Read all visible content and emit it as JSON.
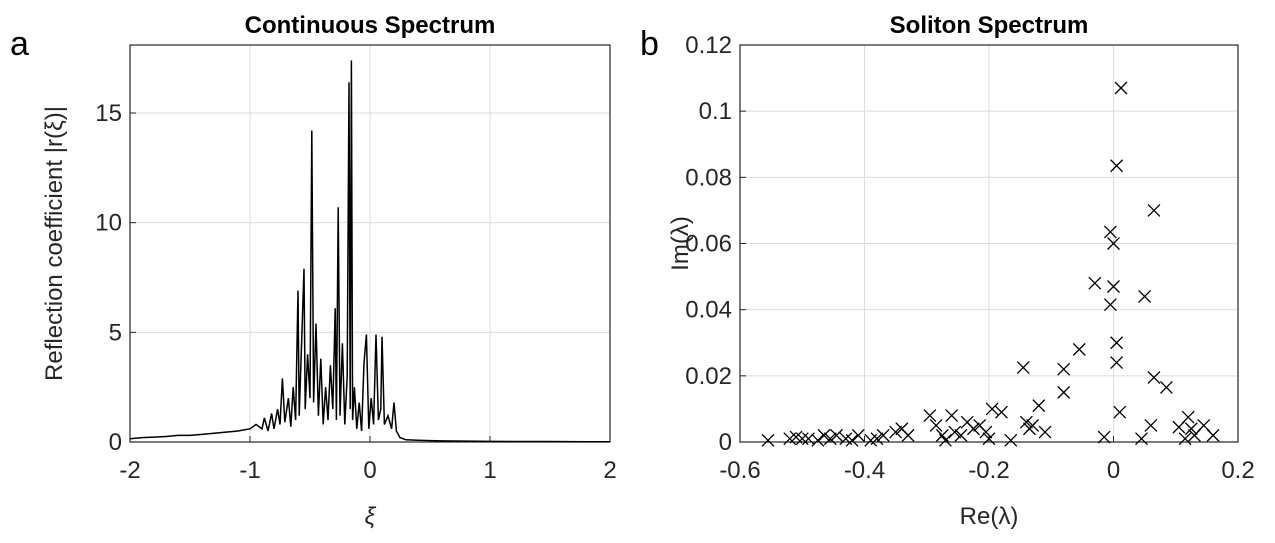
{
  "chart_data": [
    {
      "type": "line",
      "panel_label": "a",
      "title": "Continuous Spectrum",
      "xlabel": "ξ",
      "ylabel": "Reflection coefficient |r(ξ)|",
      "color": "#000000",
      "grid": true,
      "xlim": [
        -2,
        2
      ],
      "xticks": [
        -2,
        -1,
        0,
        1,
        2
      ],
      "ylim": [
        0,
        18.1
      ],
      "yticks": [
        0,
        5,
        10,
        15
      ],
      "x": [
        -2,
        -1.9,
        -1.8,
        -1.7,
        -1.6,
        -1.5,
        -1.4,
        -1.3,
        -1.2,
        -1.1,
        -1.0,
        -0.95,
        -0.9,
        -0.88,
        -0.85,
        -0.82,
        -0.8,
        -0.77,
        -0.75,
        -0.73,
        -0.71,
        -0.68,
        -0.66,
        -0.64,
        -0.62,
        -0.6,
        -0.59,
        -0.57,
        -0.55,
        -0.54,
        -0.52,
        -0.5,
        -0.485,
        -0.47,
        -0.45,
        -0.43,
        -0.41,
        -0.39,
        -0.37,
        -0.35,
        -0.33,
        -0.31,
        -0.29,
        -0.28,
        -0.265,
        -0.25,
        -0.23,
        -0.21,
        -0.19,
        -0.175,
        -0.165,
        -0.155,
        -0.145,
        -0.13,
        -0.11,
        -0.09,
        -0.07,
        -0.05,
        -0.03,
        -0.01,
        0.01,
        0.03,
        0.05,
        0.07,
        0.09,
        0.1,
        0.12,
        0.15,
        0.18,
        0.2,
        0.22,
        0.25,
        0.3,
        0.4,
        0.5,
        0.6,
        0.8,
        1.0,
        1.2,
        1.5,
        1.8,
        2.0
      ],
      "values": [
        0.15,
        0.2,
        0.22,
        0.25,
        0.3,
        0.3,
        0.35,
        0.4,
        0.45,
        0.5,
        0.6,
        0.8,
        0.6,
        1.1,
        0.5,
        1.3,
        0.6,
        1.5,
        0.8,
        2.9,
        0.9,
        2.0,
        0.7,
        2.5,
        1.0,
        6.9,
        1.2,
        4.5,
        7.9,
        1.5,
        4.0,
        2.0,
        14.2,
        1.8,
        5.4,
        1.2,
        3.8,
        0.8,
        2.5,
        1.0,
        3.5,
        1.5,
        6.1,
        1.0,
        10.7,
        1.2,
        4.5,
        0.8,
        3.0,
        16.4,
        1.5,
        17.4,
        1.0,
        2.5,
        0.6,
        1.8,
        0.5,
        3.6,
        4.9,
        0.6,
        2.0,
        0.8,
        4.9,
        1.0,
        1.5,
        4.8,
        0.8,
        1.2,
        0.6,
        1.8,
        0.5,
        0.2,
        0.1,
        0.08,
        0.06,
        0.05,
        0.04,
        0.03,
        0.02,
        0.02,
        0.01,
        0.01
      ]
    },
    {
      "type": "scatter",
      "panel_label": "b",
      "title": "Soliton Spectrum",
      "xlabel": "Re(λ)",
      "ylabel": "Im(λ)",
      "color": "#000000",
      "grid": true,
      "xlim": [
        -0.6,
        0.2
      ],
      "xticks": [
        -0.6,
        -0.4,
        -0.2,
        0,
        0.2
      ],
      "ylim": [
        0,
        0.12
      ],
      "yticks": [
        0,
        0.02,
        0.04,
        0.06,
        0.08,
        0.1,
        0.12
      ],
      "x": [
        -0.555,
        -0.52,
        -0.51,
        -0.5,
        -0.49,
        -0.475,
        -0.465,
        -0.455,
        -0.445,
        -0.43,
        -0.42,
        -0.41,
        -0.39,
        -0.38,
        -0.37,
        -0.35,
        -0.34,
        -0.33,
        -0.295,
        -0.285,
        -0.275,
        -0.27,
        -0.26,
        -0.255,
        -0.245,
        -0.235,
        -0.225,
        -0.215,
        -0.205,
        -0.2,
        -0.195,
        -0.18,
        -0.165,
        -0.145,
        -0.14,
        -0.135,
        -0.13,
        -0.12,
        -0.11,
        -0.08,
        -0.08,
        -0.055,
        -0.03,
        -0.015,
        -0.005,
        -0.005,
        0,
        0,
        0.005,
        0.005,
        0.005,
        0.01,
        0.012,
        0.045,
        0.05,
        0.06,
        0.065,
        0.065,
        0.085,
        0.105,
        0.115,
        0.12,
        0.125,
        0.13,
        0.145,
        0.16
      ],
      "values": [
        0.0005,
        0.001,
        0.0015,
        0.001,
        0.001,
        0.0005,
        0.002,
        0.001,
        0.002,
        0.001,
        0.0005,
        0.002,
        0.0005,
        0.001,
        0.002,
        0.003,
        0.004,
        0.002,
        0.008,
        0.005,
        0.002,
        0.0005,
        0.008,
        0.003,
        0.002,
        0.006,
        0.004,
        0.005,
        0.003,
        0.001,
        0.01,
        0.009,
        0.0005,
        0.0225,
        0.006,
        0.004,
        0.005,
        0.011,
        0.003,
        0.022,
        0.015,
        0.028,
        0.048,
        0.0015,
        0.0635,
        0.0415,
        0.06,
        0.047,
        0.0835,
        0.03,
        0.024,
        0.009,
        0.107,
        0.001,
        0.044,
        0.005,
        0.07,
        0.0195,
        0.0165,
        0.0045,
        0.001,
        0.0075,
        0.004,
        0.002,
        0.005,
        0.002
      ]
    }
  ]
}
